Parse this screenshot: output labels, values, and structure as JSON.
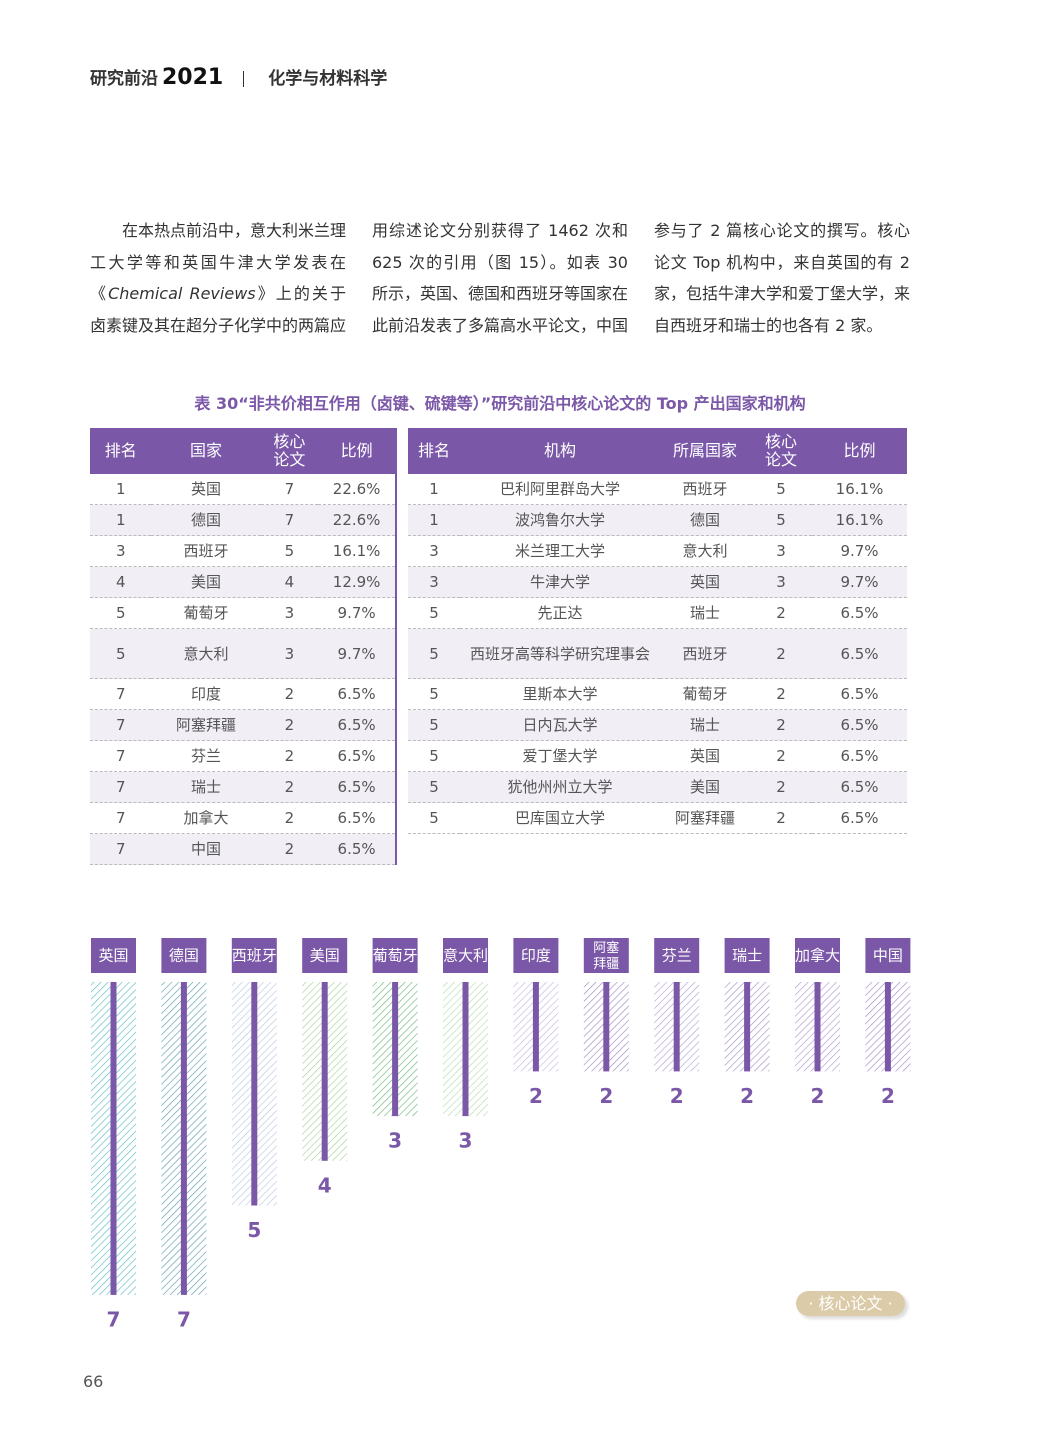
{
  "header": {
    "title": "研究前沿",
    "year": "2021",
    "section": "化学与材料科学"
  },
  "body": {
    "before": "在本热点前沿中，意大利米兰理工大学等和英国牛津大学发表在《",
    "journal": "Chemical Reviews",
    "after": "》上的关于卤素键及其在超分子化学中的两篇应用综述论文分别获得了 1462 次和 625 次的引用（图 15）。如表 30 所示，英国、德国和西班牙等国家在此前沿发表了多篇高水平论文，中国参与了 2 篇核心论文的撰写。核心论文 Top 机构中，来自英国的有 2 家，包括牛津大学和爱丁堡大学，来自西班牙和瑞士的也各有 2 家。"
  },
  "table_caption": "表 30“非共价相互作用（卤键、硫键等）”研究前沿中核心论文的 Top 产出国家和机构",
  "tables": [
    {
      "columns": [
        "排名",
        "国家",
        "核心论文",
        "比例"
      ],
      "rows": [
        [
          "1",
          "英国",
          "7",
          "22.6%"
        ],
        [
          "1",
          "德国",
          "7",
          "22.6%"
        ],
        [
          "3",
          "西班牙",
          "5",
          "16.1%"
        ],
        [
          "4",
          "美国",
          "4",
          "12.9%"
        ],
        [
          "5",
          "葡萄牙",
          "3",
          "9.7%"
        ],
        [
          "5",
          "意大利",
          "3",
          "9.7%"
        ],
        [
          "7",
          "印度",
          "2",
          "6.5%"
        ],
        [
          "7",
          "阿塞拜疆",
          "2",
          "6.5%"
        ],
        [
          "7",
          "芬兰",
          "2",
          "6.5%"
        ],
        [
          "7",
          "瑞士",
          "2",
          "6.5%"
        ],
        [
          "7",
          "加拿大",
          "2",
          "6.5%"
        ],
        [
          "7",
          "中国",
          "2",
          "6.5%"
        ]
      ]
    },
    {
      "columns": [
        "排名",
        "机构",
        "所属国家",
        "核心论文",
        "比例"
      ],
      "rows": [
        [
          "1",
          "巴利阿里群岛大学",
          "西班牙",
          "5",
          "16.1%"
        ],
        [
          "1",
          "波鸿鲁尔大学",
          "德国",
          "5",
          "16.1%"
        ],
        [
          "3",
          "米兰理工大学",
          "意大利",
          "3",
          "9.7%"
        ],
        [
          "3",
          "牛津大学",
          "英国",
          "3",
          "9.7%"
        ],
        [
          "5",
          "先正达",
          "瑞士",
          "2",
          "6.5%"
        ],
        [
          "5",
          "西班牙高等科学研究理事会",
          "西班牙",
          "2",
          "6.5%"
        ],
        [
          "5",
          "里斯本大学",
          "葡萄牙",
          "2",
          "6.5%"
        ],
        [
          "5",
          "日内瓦大学",
          "瑞士",
          "2",
          "6.5%"
        ],
        [
          "5",
          "爱丁堡大学",
          "英国",
          "2",
          "6.5%"
        ],
        [
          "5",
          "犹他州州立大学",
          "美国",
          "2",
          "6.5%"
        ],
        [
          "5",
          "巴库国立大学",
          "阿塞拜疆",
          "2",
          "6.5%"
        ]
      ]
    }
  ],
  "chart_data": {
    "type": "bar",
    "categories": [
      "英国",
      "德国",
      "西班牙",
      "美国",
      "葡萄牙",
      "意大利",
      "印度",
      "阿塞拜疆",
      "芬兰",
      "瑞士",
      "加拿大",
      "中国"
    ],
    "values": [
      7,
      7,
      5,
      4,
      3,
      3,
      2,
      2,
      2,
      2,
      2,
      2
    ],
    "colors": [
      "#5bbcc4",
      "#5f9ca6",
      "#b9c9de",
      "#a6d39a",
      "#6cb87a",
      "#b5dcb0",
      "#c7b8dc",
      "#9d88c2",
      "#b3a3d2",
      "#a592ca",
      "#ad9bd0",
      "#a08cc6"
    ],
    "bar_line_color": "#7b57a8",
    "label_color": "#7b57a8"
  },
  "badge": "· 核心论文 ·",
  "page_number": "66"
}
